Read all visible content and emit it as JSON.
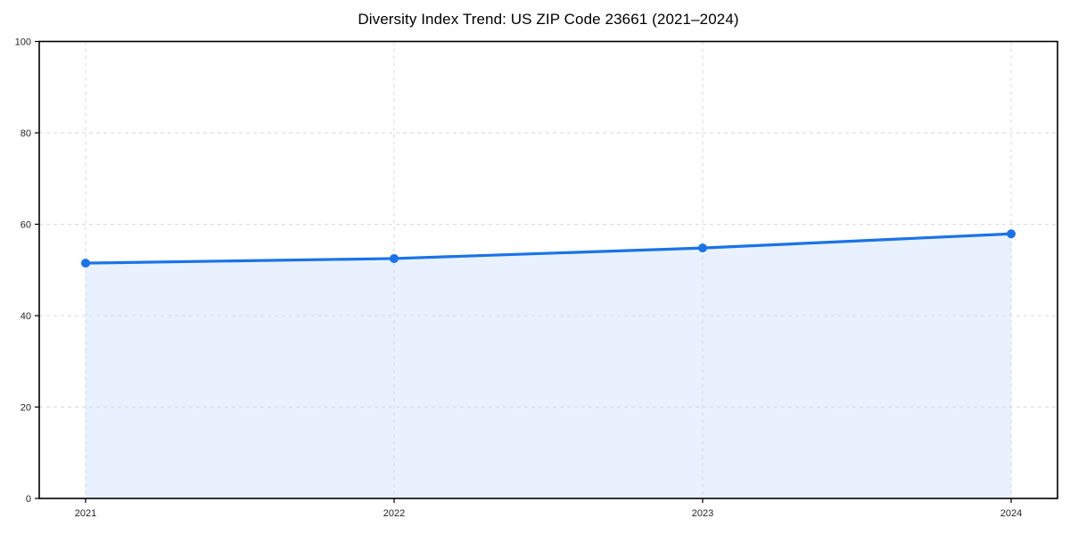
{
  "figure": {
    "background_color": "#ffffff"
  },
  "chart_data": {
    "type": "area",
    "title": "Diversity Index Trend: US ZIP Code 23661 (2021–2024)",
    "categories": [
      "2021",
      "2022",
      "2023",
      "2024"
    ],
    "x": [
      2021,
      2022,
      2023,
      2024
    ],
    "series": [
      {
        "name": "Diversity Index",
        "values": [
          51.5,
          52.5,
          54.8,
          57.9
        ]
      }
    ],
    "xlabel": "",
    "ylabel": "",
    "ylim": [
      0,
      100
    ],
    "yticks": [
      0,
      20,
      40,
      60,
      80,
      100
    ],
    "grid": true,
    "grid_style": "dashed",
    "legend_position": "none",
    "line_color": "#1a73e8",
    "marker": "circle",
    "fill_color": "#e8f1fd",
    "grid_color": "#d9d9d9",
    "axis_color": "#000000",
    "tick_label_color": "#262626"
  }
}
